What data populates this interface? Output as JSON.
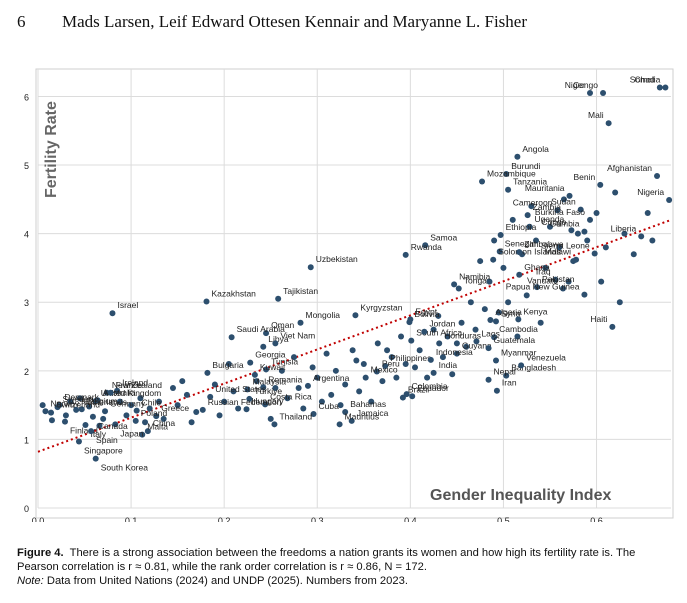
{
  "page": {
    "number": "6",
    "running_head": "Mads Larsen, Leif Edward Ottesen Kennair and Maryanne L. Fisher"
  },
  "caption": {
    "label": "Figure 4.",
    "text": "There is a strong association between the freedoms a nation grants its women and how high its fertility rate is. The Pearson correlation is r ≈ 0.81, while the rank order correlation is r ≈ 0.86, N = 172.",
    "note_label": "Note:",
    "note_text": "Data from United Nations (2024) and UNDP (2025). Numbers from 2023."
  },
  "colors": {
    "point": "#2d4f6e",
    "trend": "#c00000",
    "grid": "#dcdcdc",
    "frame": "#cfcfcf"
  },
  "chart_data": {
    "type": "scatter",
    "xlabel": "Gender Inequality Index",
    "ylabel": "Fertility Rate",
    "xlim": [
      0,
      0.68
    ],
    "ylim": [
      0,
      6.4
    ],
    "xticks": [
      "0.0",
      "0.1",
      "0.2",
      "0.3",
      "0.4",
      "0.5",
      "0.6"
    ],
    "yticks": [
      "0",
      "1",
      "2",
      "3",
      "4",
      "5",
      "6"
    ],
    "grid": true,
    "trendline": {
      "style": "dotted",
      "x": [
        0,
        0.68
      ],
      "y": [
        0.82,
        4.2
      ]
    },
    "points": [
      {
        "label": "Somalia",
        "x": 0.674,
        "y": 6.13
      },
      {
        "label": "Congo",
        "x": 0.607,
        "y": 6.05
      },
      {
        "label": "Niger",
        "x": 0.593,
        "y": 6.05
      },
      {
        "label": "Chad",
        "x": 0.668,
        "y": 6.13
      },
      {
        "label": "Mali",
        "x": 0.613,
        "y": 5.61
      },
      {
        "label": "Angola",
        "x": 0.515,
        "y": 5.12
      },
      {
        "label": "Burundi",
        "x": 0.503,
        "y": 4.87
      },
      {
        "label": "Mozambique",
        "x": 0.477,
        "y": 4.76
      },
      {
        "label": "Tanzania",
        "x": 0.505,
        "y": 4.64
      },
      {
        "label": "Benin",
        "x": 0.604,
        "y": 4.71
      },
      {
        "label": "Afghanistan",
        "x": 0.665,
        "y": 4.84
      },
      {
        "label": "Mauritania",
        "x": 0.571,
        "y": 4.55
      },
      {
        "label": "Cameroon",
        "x": 0.558,
        "y": 4.34
      },
      {
        "label": "Nigeria",
        "x": 0.678,
        "y": 4.49
      },
      {
        "label": "Zambia",
        "x": 0.526,
        "y": 4.27
      },
      {
        "label": "Sudan",
        "x": 0.583,
        "y": 4.35
      },
      {
        "label": "Burkina Faso",
        "x": 0.593,
        "y": 4.2
      },
      {
        "label": "Uganda",
        "x": 0.528,
        "y": 4.1
      },
      {
        "label": "Gambia",
        "x": 0.587,
        "y": 4.03
      },
      {
        "label": "Congo",
        "x": 0.573,
        "y": 4.05
      },
      {
        "label": "Liberia",
        "x": 0.648,
        "y": 3.96
      },
      {
        "label": "Ethiopia",
        "x": 0.497,
        "y": 3.98
      },
      {
        "label": "Senegal",
        "x": 0.496,
        "y": 3.74
      },
      {
        "label": "Samoa",
        "x": 0.416,
        "y": 3.83
      },
      {
        "label": "Rwanda",
        "x": 0.395,
        "y": 3.69
      },
      {
        "label": "Solomon Islands",
        "x": 0.489,
        "y": 3.62
      },
      {
        "label": "Zimbabwe",
        "x": 0.517,
        "y": 3.73
      },
      {
        "label": "Sierra Leone",
        "x": 0.598,
        "y": 3.71
      },
      {
        "label": "Malawi",
        "x": 0.578,
        "y": 3.62
      },
      {
        "label": "Uzbekistan",
        "x": 0.293,
        "y": 3.51
      },
      {
        "label": "Namibia",
        "x": 0.447,
        "y": 3.26
      },
      {
        "label": "Tonga",
        "x": 0.452,
        "y": 3.2
      },
      {
        "label": "Iraq",
        "x": 0.556,
        "y": 3.33
      },
      {
        "label": "Vanuatu",
        "x": 0.564,
        "y": 3.2
      },
      {
        "label": "Ghana",
        "x": 0.517,
        "y": 3.4
      },
      {
        "label": "Pakistan",
        "x": 0.536,
        "y": 3.22
      },
      {
        "label": "Kazakhstan",
        "x": 0.181,
        "y": 3.01
      },
      {
        "label": "Tajikistan",
        "x": 0.258,
        "y": 3.05
      },
      {
        "label": "Israel",
        "x": 0.08,
        "y": 2.84
      },
      {
        "label": "Kyrgyzstan",
        "x": 0.341,
        "y": 2.81
      },
      {
        "label": "Bolivia",
        "x": 0.399,
        "y": 2.71
      },
      {
        "label": "Egypt",
        "x": 0.4,
        "y": 2.75
      },
      {
        "label": "Algeria",
        "x": 0.486,
        "y": 2.74
      },
      {
        "label": "Kenya",
        "x": 0.516,
        "y": 2.75
      },
      {
        "label": "Papua New Guinea",
        "x": 0.587,
        "y": 3.11
      },
      {
        "label": "Mongolia",
        "x": 0.282,
        "y": 2.7
      },
      {
        "label": "Oman",
        "x": 0.245,
        "y": 2.55
      },
      {
        "label": "Saudi Arabia",
        "x": 0.208,
        "y": 2.49
      },
      {
        "label": "South Africa",
        "x": 0.401,
        "y": 2.44
      },
      {
        "label": "Syria",
        "x": 0.492,
        "y": 2.72
      },
      {
        "label": "Cambodia",
        "x": 0.49,
        "y": 2.49
      },
      {
        "label": "Libya",
        "x": 0.242,
        "y": 2.35
      },
      {
        "label": "Viet Nam",
        "x": 0.255,
        "y": 2.4
      },
      {
        "label": "Jordan",
        "x": 0.415,
        "y": 2.57
      },
      {
        "label": "Haiti",
        "x": 0.617,
        "y": 2.64
      },
      {
        "label": "Honduras",
        "x": 0.431,
        "y": 2.4
      },
      {
        "label": "Laos",
        "x": 0.471,
        "y": 2.43
      },
      {
        "label": "Georgia",
        "x": 0.228,
        "y": 2.12
      },
      {
        "label": "Bulgaria",
        "x": 0.182,
        "y": 1.97
      },
      {
        "label": "Tunisia",
        "x": 0.245,
        "y": 2.02
      },
      {
        "label": "Philippines",
        "x": 0.373,
        "y": 2.07
      },
      {
        "label": "Guyana",
        "x": 0.45,
        "y": 2.25
      },
      {
        "label": "Guatemala",
        "x": 0.484,
        "y": 2.33
      },
      {
        "label": "Peru",
        "x": 0.364,
        "y": 1.99
      },
      {
        "label": "Malaysia",
        "x": 0.225,
        "y": 1.73
      },
      {
        "label": "Kuwait",
        "x": 0.233,
        "y": 1.94
      },
      {
        "label": "Romania",
        "x": 0.242,
        "y": 1.76
      },
      {
        "label": "Mexico",
        "x": 0.352,
        "y": 1.9
      },
      {
        "label": "Indonesia",
        "x": 0.422,
        "y": 2.16
      },
      {
        "label": "Myanmar",
        "x": 0.492,
        "y": 2.15
      },
      {
        "label": "Argentina",
        "x": 0.29,
        "y": 1.78
      },
      {
        "label": "Bangladesh",
        "x": 0.503,
        "y": 1.93
      },
      {
        "label": "Nepal",
        "x": 0.484,
        "y": 1.87
      },
      {
        "label": "Ecuador",
        "x": 0.402,
        "y": 1.63
      },
      {
        "label": "Venezuela",
        "x": 0.519,
        "y": 2.08
      },
      {
        "label": "Bahamas",
        "x": 0.33,
        "y": 1.4
      },
      {
        "label": "Iran",
        "x": 0.493,
        "y": 1.71
      },
      {
        "label": "India",
        "x": 0.425,
        "y": 1.97
      },
      {
        "label": "Brazil",
        "x": 0.392,
        "y": 1.61
      },
      {
        "label": "Colombia",
        "x": 0.396,
        "y": 1.66
      },
      {
        "label": "Costa Rica",
        "x": 0.244,
        "y": 1.51
      },
      {
        "label": "Cuba",
        "x": 0.296,
        "y": 1.37
      },
      {
        "label": "Jamaica",
        "x": 0.337,
        "y": 1.27
      },
      {
        "label": "Thailand",
        "x": 0.254,
        "y": 1.22
      },
      {
        "label": "Mauritius",
        "x": 0.324,
        "y": 1.22
      },
      {
        "label": "Hungary",
        "x": 0.224,
        "y": 1.44
      },
      {
        "label": "United States",
        "x": 0.185,
        "y": 1.62
      },
      {
        "label": "Türkiye",
        "x": 0.227,
        "y": 1.59
      },
      {
        "label": "Greece",
        "x": 0.127,
        "y": 1.34
      },
      {
        "label": "Russian Federation",
        "x": 0.177,
        "y": 1.43
      },
      {
        "label": "Chile",
        "x": 0.106,
        "y": 1.42
      },
      {
        "label": "China",
        "x": 0.118,
        "y": 1.12
      },
      {
        "label": "Malta",
        "x": 0.112,
        "y": 1.07
      },
      {
        "label": "Japan",
        "x": 0.083,
        "y": 1.22
      },
      {
        "label": "Ireland",
        "x": 0.085,
        "y": 1.71
      },
      {
        "label": "Poland",
        "x": 0.105,
        "y": 1.27
      },
      {
        "label": "New Zealand",
        "x": 0.074,
        "y": 1.68
      },
      {
        "label": "United Kingdom",
        "x": 0.062,
        "y": 1.56
      },
      {
        "label": "Australia",
        "x": 0.064,
        "y": 1.57
      },
      {
        "label": "Germany",
        "x": 0.072,
        "y": 1.41
      },
      {
        "label": "France",
        "x": 0.078,
        "y": 1.68
      },
      {
        "label": "Belgium",
        "x": 0.047,
        "y": 1.44
      },
      {
        "label": "Sweden",
        "x": 0.021,
        "y": 1.47
      },
      {
        "label": "Denmark",
        "x": 0.023,
        "y": 1.5
      },
      {
        "label": "Switzerland",
        "x": 0.014,
        "y": 1.39
      },
      {
        "label": "Norway",
        "x": 0.008,
        "y": 1.41
      },
      {
        "label": "Italy",
        "x": 0.051,
        "y": 1.21
      },
      {
        "label": "Canada",
        "x": 0.059,
        "y": 1.33
      },
      {
        "label": "Netherlands",
        "x": 0.041,
        "y": 1.43
      },
      {
        "label": "Finland",
        "x": 0.029,
        "y": 1.26
      },
      {
        "label": "South Korea",
        "x": 0.062,
        "y": 0.72
      },
      {
        "label": "Singapore",
        "x": 0.044,
        "y": 0.97
      },
      {
        "label": "Spain",
        "x": 0.057,
        "y": 1.12
      }
    ],
    "unlabeled_points": [
      {
        "x": 0.005,
        "y": 1.5
      },
      {
        "x": 0.03,
        "y": 1.35
      },
      {
        "x": 0.045,
        "y": 1.6
      },
      {
        "x": 0.055,
        "y": 1.48
      },
      {
        "x": 0.066,
        "y": 1.2
      },
      {
        "x": 0.088,
        "y": 1.55
      },
      {
        "x": 0.095,
        "y": 1.35
      },
      {
        "x": 0.1,
        "y": 1.5
      },
      {
        "x": 0.11,
        "y": 1.6
      },
      {
        "x": 0.12,
        "y": 1.45
      },
      {
        "x": 0.13,
        "y": 1.55
      },
      {
        "x": 0.135,
        "y": 1.3
      },
      {
        "x": 0.145,
        "y": 1.75
      },
      {
        "x": 0.15,
        "y": 1.5
      },
      {
        "x": 0.16,
        "y": 1.65
      },
      {
        "x": 0.17,
        "y": 1.4
      },
      {
        "x": 0.19,
        "y": 1.8
      },
      {
        "x": 0.2,
        "y": 1.55
      },
      {
        "x": 0.205,
        "y": 2.1
      },
      {
        "x": 0.21,
        "y": 1.7
      },
      {
        "x": 0.215,
        "y": 1.45
      },
      {
        "x": 0.235,
        "y": 1.85
      },
      {
        "x": 0.25,
        "y": 1.3
      },
      {
        "x": 0.262,
        "y": 2.0
      },
      {
        "x": 0.268,
        "y": 1.6
      },
      {
        "x": 0.275,
        "y": 2.2
      },
      {
        "x": 0.28,
        "y": 1.75
      },
      {
        "x": 0.3,
        "y": 1.9
      },
      {
        "x": 0.305,
        "y": 1.55
      },
      {
        "x": 0.31,
        "y": 2.25
      },
      {
        "x": 0.315,
        "y": 1.65
      },
      {
        "x": 0.32,
        "y": 2.0
      },
      {
        "x": 0.33,
        "y": 1.8
      },
      {
        "x": 0.338,
        "y": 2.3
      },
      {
        "x": 0.345,
        "y": 1.7
      },
      {
        "x": 0.35,
        "y": 2.1
      },
      {
        "x": 0.358,
        "y": 1.55
      },
      {
        "x": 0.365,
        "y": 2.4
      },
      {
        "x": 0.37,
        "y": 1.85
      },
      {
        "x": 0.38,
        "y": 2.2
      },
      {
        "x": 0.385,
        "y": 1.9
      },
      {
        "x": 0.39,
        "y": 2.5
      },
      {
        "x": 0.405,
        "y": 2.05
      },
      {
        "x": 0.41,
        "y": 2.3
      },
      {
        "x": 0.418,
        "y": 1.9
      },
      {
        "x": 0.425,
        "y": 2.6
      },
      {
        "x": 0.435,
        "y": 2.2
      },
      {
        "x": 0.44,
        "y": 2.5
      },
      {
        "x": 0.445,
        "y": 1.95
      },
      {
        "x": 0.455,
        "y": 2.7
      },
      {
        "x": 0.46,
        "y": 2.35
      },
      {
        "x": 0.465,
        "y": 3.0
      },
      {
        "x": 0.47,
        "y": 2.6
      },
      {
        "x": 0.475,
        "y": 3.6
      },
      {
        "x": 0.48,
        "y": 2.9
      },
      {
        "x": 0.485,
        "y": 3.3
      },
      {
        "x": 0.49,
        "y": 3.9
      },
      {
        "x": 0.5,
        "y": 3.5
      },
      {
        "x": 0.505,
        "y": 3.0
      },
      {
        "x": 0.51,
        "y": 4.2
      },
      {
        "x": 0.52,
        "y": 3.7
      },
      {
        "x": 0.525,
        "y": 3.1
      },
      {
        "x": 0.53,
        "y": 4.4
      },
      {
        "x": 0.535,
        "y": 3.9
      },
      {
        "x": 0.545,
        "y": 3.5
      },
      {
        "x": 0.55,
        "y": 4.1
      },
      {
        "x": 0.56,
        "y": 3.8
      },
      {
        "x": 0.565,
        "y": 4.5
      },
      {
        "x": 0.575,
        "y": 3.6
      },
      {
        "x": 0.58,
        "y": 4.0
      },
      {
        "x": 0.59,
        "y": 3.9
      },
      {
        "x": 0.6,
        "y": 4.3
      },
      {
        "x": 0.61,
        "y": 3.8
      },
      {
        "x": 0.62,
        "y": 4.6
      },
      {
        "x": 0.63,
        "y": 4.0
      },
      {
        "x": 0.64,
        "y": 3.7
      },
      {
        "x": 0.015,
        "y": 1.28
      },
      {
        "x": 0.035,
        "y": 1.55
      },
      {
        "x": 0.07,
        "y": 1.3
      },
      {
        "x": 0.115,
        "y": 1.25
      },
      {
        "x": 0.155,
        "y": 1.85
      },
      {
        "x": 0.165,
        "y": 1.25
      },
      {
        "x": 0.195,
        "y": 1.35
      },
      {
        "x": 0.255,
        "y": 1.75
      },
      {
        "x": 0.285,
        "y": 1.45
      },
      {
        "x": 0.295,
        "y": 2.05
      },
      {
        "x": 0.325,
        "y": 1.5
      },
      {
        "x": 0.342,
        "y": 2.15
      },
      {
        "x": 0.375,
        "y": 2.3
      },
      {
        "x": 0.395,
        "y": 2.1
      },
      {
        "x": 0.43,
        "y": 2.8
      },
      {
        "x": 0.45,
        "y": 2.4
      },
      {
        "x": 0.495,
        "y": 2.85
      },
      {
        "x": 0.515,
        "y": 2.5
      },
      {
        "x": 0.54,
        "y": 2.7
      },
      {
        "x": 0.57,
        "y": 3.3
      },
      {
        "x": 0.605,
        "y": 3.3
      },
      {
        "x": 0.625,
        "y": 3.0
      },
      {
        "x": 0.655,
        "y": 4.3
      },
      {
        "x": 0.66,
        "y": 3.9
      }
    ]
  }
}
